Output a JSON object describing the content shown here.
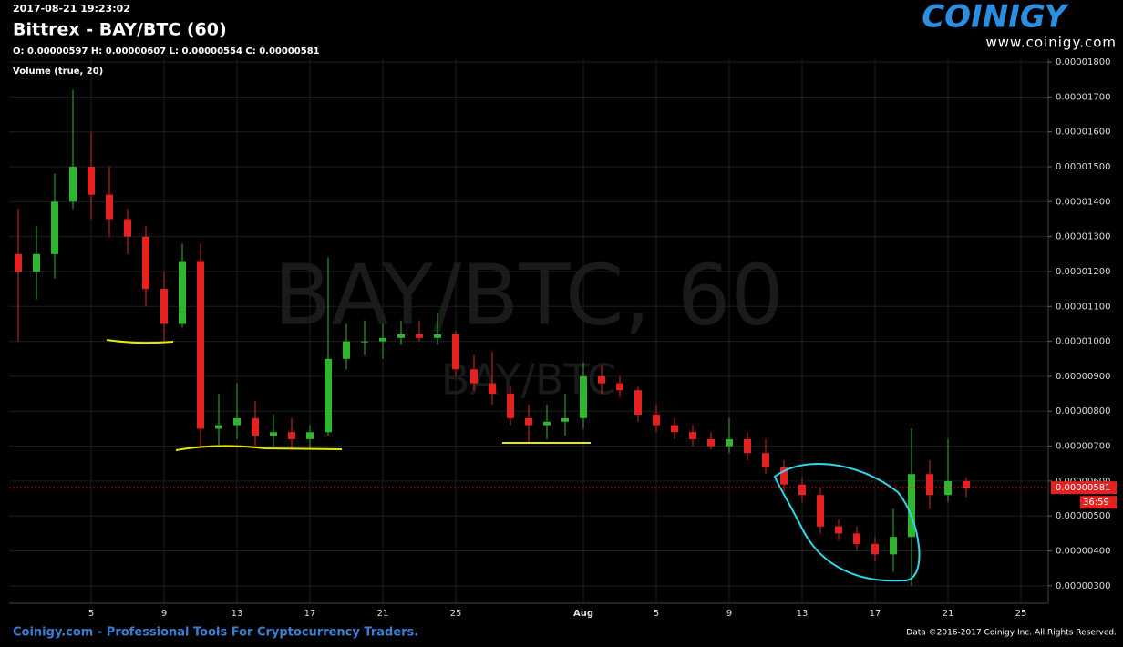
{
  "chart_data": {
    "type": "candlestick",
    "timestamp": "2017-08-21 19:23:02",
    "title": "Bittrex - BAY/BTC (60)",
    "ohlc_text": "O: 0.00000597 H: 0.00000607 L: 0.00000554 C: 0.00000581",
    "volume_label": "Volume (true, 20)",
    "watermark": "BAY/BTC, 60",
    "watermark_small": "BAY/BTC",
    "logo": "COINIGY",
    "website": "www.coinigy.com",
    "footer_left": "Coinigy.com - Professional Tools For Cryptocurrency Traders.",
    "footer_right": "Data ©2016-2017 Coinigy Inc. All Rights Reserved.",
    "last_price": {
      "value": 5.81e-06,
      "label": "0.00000581"
    },
    "countdown": "36:59",
    "up_color": "#2fb52f",
    "down_color": "#e52222",
    "categories": [
      null,
      null,
      null,
      null,
      "5",
      null,
      null,
      null,
      "9",
      null,
      null,
      null,
      "13",
      null,
      null,
      null,
      "17",
      null,
      null,
      null,
      "21",
      null,
      null,
      null,
      "25",
      null,
      null,
      null,
      null,
      null,
      null,
      "Aug",
      null,
      null,
      null,
      "5",
      null,
      null,
      null,
      "9",
      null,
      null,
      null,
      "13",
      null,
      null,
      null,
      "17",
      null,
      null,
      null,
      "21",
      null,
      null,
      null,
      "25",
      null
    ],
    "open": [
      1.25e-05,
      1.2e-05,
      1.25e-05,
      1.4e-05,
      1.5e-05,
      1.42e-05,
      1.35e-05,
      1.3e-05,
      1.15e-05,
      1.05e-05,
      1.23e-05,
      7.5e-06,
      7.6e-06,
      7.8e-06,
      7.3e-06,
      7.4e-06,
      7.2e-06,
      7.4e-06,
      9.5e-06,
      1e-05,
      1e-05,
      1.01e-05,
      1.02e-05,
      1.01e-05,
      1.02e-05,
      9.2e-06,
      8.8e-06,
      8.5e-06,
      7.8e-06,
      7.6e-06,
      7.7e-06,
      7.8e-06,
      9e-06,
      8.8e-06,
      8.6e-06,
      7.9e-06,
      7.6e-06,
      7.4e-06,
      7.2e-06,
      7e-06,
      7.2e-06,
      6.8e-06,
      6.4e-06,
      5.9e-06,
      5.6e-06,
      4.7e-06,
      4.5e-06,
      4.2e-06,
      3.9e-06,
      4.4e-06,
      6.2e-06,
      5.6e-06,
      6e-06,
      null,
      null,
      null,
      null
    ],
    "high": [
      1.38e-05,
      1.33e-05,
      1.48e-05,
      1.72e-05,
      1.6e-05,
      1.5e-05,
      1.38e-05,
      1.33e-05,
      1.2e-05,
      1.28e-05,
      1.28e-05,
      8.5e-06,
      8.8e-06,
      8.3e-06,
      7.9e-06,
      7.8e-06,
      7.6e-06,
      1.24e-05,
      1.05e-05,
      1.06e-05,
      1.05e-05,
      1.06e-05,
      1.06e-05,
      1.08e-05,
      1.03e-05,
      9.6e-06,
      9.7e-06,
      8.7e-06,
      8.2e-06,
      8.2e-06,
      8.5e-06,
      9.4e-06,
      9.3e-06,
      9e-06,
      8.7e-06,
      8.2e-06,
      7.8e-06,
      7.6e-06,
      7.4e-06,
      7.8e-06,
      7.4e-06,
      7.2e-06,
      6.6e-06,
      6.1e-06,
      5.8e-06,
      4.9e-06,
      4.7e-06,
      4.4e-06,
      5.2e-06,
      7.5e-06,
      6.6e-06,
      7.2e-06,
      6.1e-06,
      null,
      null,
      null,
      null
    ],
    "low": [
      1e-05,
      1.12e-05,
      1.18e-05,
      1.38e-05,
      1.35e-05,
      1.3e-05,
      1.25e-05,
      1.1e-05,
      1e-05,
      1.04e-05,
      7e-06,
      7e-06,
      7.2e-06,
      7e-06,
      7e-06,
      6.9e-06,
      6.9e-06,
      7.3e-06,
      9.2e-06,
      9.6e-06,
      9.5e-06,
      9.9e-06,
      1e-05,
      9.9e-06,
      9e-06,
      8.6e-06,
      8.2e-06,
      7.6e-06,
      7.1e-06,
      7.2e-06,
      7.3e-06,
      7.5e-06,
      8.5e-06,
      8.4e-06,
      7.7e-06,
      7.4e-06,
      7.2e-06,
      7e-06,
      6.9e-06,
      6.8e-06,
      6.6e-06,
      6.2e-06,
      5.7e-06,
      5.4e-06,
      4.5e-06,
      4.3e-06,
      4e-06,
      3.7e-06,
      3.4e-06,
      3e-06,
      5.2e-06,
      5.4e-06,
      5.54e-06,
      null,
      null,
      null,
      null
    ],
    "close": [
      1.2e-05,
      1.25e-05,
      1.4e-05,
      1.5e-05,
      1.42e-05,
      1.35e-05,
      1.3e-05,
      1.15e-05,
      1.05e-05,
      1.23e-05,
      7.5e-06,
      7.6e-06,
      7.8e-06,
      7.3e-06,
      7.4e-06,
      7.2e-06,
      7.4e-06,
      9.5e-06,
      1e-05,
      1e-05,
      1.01e-05,
      1.02e-05,
      1.01e-05,
      1.02e-05,
      9.2e-06,
      8.8e-06,
      8.5e-06,
      7.8e-06,
      7.6e-06,
      7.7e-06,
      7.8e-06,
      9e-06,
      8.8e-06,
      8.6e-06,
      7.9e-06,
      7.6e-06,
      7.4e-06,
      7.2e-06,
      7e-06,
      7.2e-06,
      6.8e-06,
      6.4e-06,
      5.9e-06,
      5.6e-06,
      4.7e-06,
      4.5e-06,
      4.2e-06,
      3.9e-06,
      4.4e-06,
      6.2e-06,
      5.6e-06,
      6e-06,
      5.81e-06,
      null,
      null,
      null,
      null
    ],
    "ylim": [
      2.5e-06,
      1.808e-05
    ],
    "yticks": [
      {
        "value": 3e-06,
        "label": "0.00000300"
      },
      {
        "value": 4e-06,
        "label": "0.00000400"
      },
      {
        "value": 5e-06,
        "label": "0.00000500"
      },
      {
        "value": 6e-06,
        "label": "0.00000600"
      },
      {
        "value": 7e-06,
        "label": "0.00000700"
      },
      {
        "value": 8e-06,
        "label": "0.00000800"
      },
      {
        "value": 9e-06,
        "label": "0.00000900"
      },
      {
        "value": 1e-05,
        "label": "0.00001000"
      },
      {
        "value": 1.1e-05,
        "label": "0.00001100"
      },
      {
        "value": 1.2e-05,
        "label": "0.00001200"
      },
      {
        "value": 1.3e-05,
        "label": "0.00001300"
      },
      {
        "value": 1.4e-05,
        "label": "0.00001400"
      },
      {
        "value": 1.5e-05,
        "label": "0.00001500"
      },
      {
        "value": 1.6e-05,
        "label": "0.00001600"
      },
      {
        "value": 1.7e-05,
        "label": "0.00001700"
      },
      {
        "value": 1.8e-05,
        "label": "0.00001800"
      }
    ],
    "grid": true
  }
}
